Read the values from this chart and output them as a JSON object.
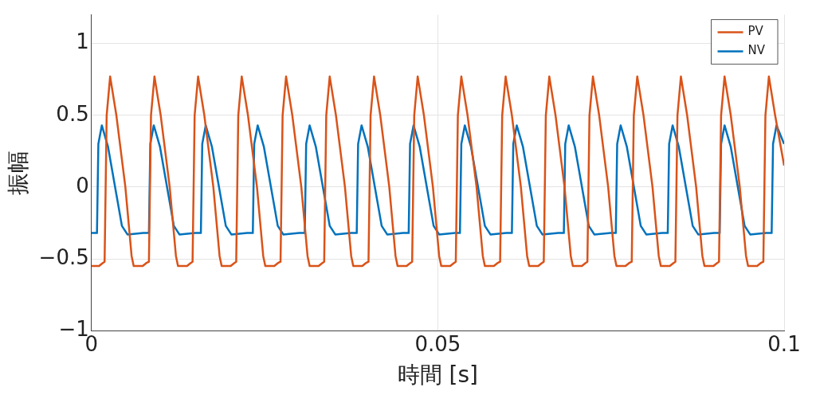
{
  "chart_data": {
    "type": "line",
    "xlabel": "時間 [s]",
    "ylabel": "振幅",
    "xlim": [
      0,
      0.1
    ],
    "xticks": [
      0,
      0.05,
      0.1
    ],
    "ylim": [
      -1,
      1.2
    ],
    "yticks": [
      -1,
      -0.5,
      0,
      0.5,
      1
    ],
    "grid": true,
    "legend": "top right",
    "marker": "none",
    "line_style": "solid",
    "series": [
      {
        "name": "PV",
        "color": "#d95319",
        "x": [
          0,
          0.0011,
          0.0016,
          0.0019,
          0.0022,
          0.0027,
          0.0036,
          0.0049,
          0.0058,
          0.0061,
          0.0074,
          0.0079,
          0.0083,
          0.0086,
          0.0091,
          0.01,
          0.0113,
          0.0122,
          0.0125,
          0.0138,
          0.0143,
          0.0146,
          0.0149,
          0.0154,
          0.0163,
          0.0176,
          0.0185,
          0.0188,
          0.0201,
          0.0206,
          0.0209,
          0.0212,
          0.0217,
          0.0226,
          0.0239,
          0.0248,
          0.0251,
          0.0264,
          0.0269,
          0.0273,
          0.0276,
          0.0281,
          0.029,
          0.0303,
          0.0312,
          0.0315,
          0.0328,
          0.0333,
          0.0336,
          0.0339,
          0.0344,
          0.0353,
          0.0366,
          0.0375,
          0.0378,
          0.0391,
          0.0396,
          0.04,
          0.0403,
          0.0408,
          0.0417,
          0.043,
          0.0439,
          0.0442,
          0.0455,
          0.046,
          0.0463,
          0.0466,
          0.0471,
          0.048,
          0.0493,
          0.0502,
          0.0505,
          0.0518,
          0.0523,
          0.0526,
          0.0529,
          0.0534,
          0.0543,
          0.0556,
          0.0565,
          0.0568,
          0.0581,
          0.0586,
          0.059,
          0.0593,
          0.0598,
          0.0607,
          0.062,
          0.0629,
          0.0632,
          0.0645,
          0.065,
          0.0653,
          0.0656,
          0.0661,
          0.067,
          0.0683,
          0.0692,
          0.0695,
          0.0708,
          0.0713,
          0.0716,
          0.0719,
          0.0724,
          0.0733,
          0.0746,
          0.0755,
          0.0758,
          0.0771,
          0.0776,
          0.078,
          0.0783,
          0.0788,
          0.0797,
          0.081,
          0.0819,
          0.0822,
          0.0835,
          0.084,
          0.0843,
          0.0846,
          0.0851,
          0.086,
          0.0873,
          0.0882,
          0.0885,
          0.0898,
          0.0903,
          0.0906,
          0.0909,
          0.0914,
          0.0923,
          0.0936,
          0.0945,
          0.0948,
          0.0961,
          0.0966,
          0.097,
          0.0973,
          0.0978,
          0.0987,
          0.1
        ],
        "values": [
          -0.55,
          -0.55,
          -0.53,
          -0.52,
          0.5,
          0.77,
          0.5,
          0,
          -0.48,
          -0.55,
          -0.55,
          -0.53,
          -0.52,
          0.5,
          0.77,
          0.5,
          0,
          -0.48,
          -0.55,
          -0.55,
          -0.53,
          -0.52,
          0.5,
          0.77,
          0.5,
          0,
          -0.48,
          -0.55,
          -0.55,
          -0.53,
          -0.52,
          0.5,
          0.77,
          0.5,
          0,
          -0.48,
          -0.55,
          -0.55,
          -0.53,
          -0.52,
          0.5,
          0.77,
          0.5,
          0,
          -0.48,
          -0.55,
          -0.55,
          -0.53,
          -0.52,
          0.5,
          0.77,
          0.5,
          0,
          -0.48,
          -0.55,
          -0.55,
          -0.53,
          -0.52,
          0.5,
          0.77,
          0.5,
          0,
          -0.48,
          -0.55,
          -0.55,
          -0.53,
          -0.52,
          0.5,
          0.77,
          0.5,
          0,
          -0.48,
          -0.55,
          -0.55,
          -0.53,
          -0.52,
          0.5,
          0.77,
          0.5,
          0,
          -0.48,
          -0.55,
          -0.55,
          -0.53,
          -0.52,
          0.5,
          0.77,
          0.5,
          0,
          -0.48,
          -0.55,
          -0.55,
          -0.53,
          -0.52,
          0.5,
          0.77,
          0.5,
          0,
          -0.48,
          -0.55,
          -0.55,
          -0.53,
          -0.52,
          0.5,
          0.77,
          0.5,
          0,
          -0.48,
          -0.55,
          -0.55,
          -0.53,
          -0.52,
          0.5,
          0.77,
          0.5,
          0,
          -0.48,
          -0.55,
          -0.55,
          -0.53,
          -0.52,
          0.5,
          0.77,
          0.5,
          0,
          -0.48,
          -0.55,
          -0.55,
          -0.53,
          -0.52,
          0.5,
          0.77,
          0.5,
          0,
          -0.48,
          -0.55,
          -0.55,
          -0.53,
          -0.52,
          0.5,
          0.77,
          0.5,
          0.15
        ]
      },
      {
        "name": "NV",
        "color": "#0072bd",
        "x": [
          0,
          0.0008,
          0.001,
          0.0015,
          0.0024,
          0.0036,
          0.0044,
          0.0052,
          0.0075,
          0.0083,
          0.0085,
          0.009,
          0.0099,
          0.0111,
          0.0119,
          0.0127,
          0.015,
          0.0158,
          0.016,
          0.0165,
          0.0174,
          0.0186,
          0.0194,
          0.0202,
          0.0225,
          0.0233,
          0.0235,
          0.024,
          0.0249,
          0.0261,
          0.0269,
          0.0277,
          0.03,
          0.0308,
          0.031,
          0.0315,
          0.0324,
          0.0336,
          0.0344,
          0.0352,
          0.0375,
          0.0383,
          0.0385,
          0.039,
          0.0399,
          0.0411,
          0.0419,
          0.0427,
          0.045,
          0.0458,
          0.046,
          0.0465,
          0.0474,
          0.0486,
          0.0494,
          0.0502,
          0.0525,
          0.0532,
          0.0534,
          0.0539,
          0.0548,
          0.056,
          0.0568,
          0.0576,
          0.0599,
          0.0607,
          0.0609,
          0.0614,
          0.0623,
          0.0635,
          0.0643,
          0.0651,
          0.0674,
          0.0682,
          0.0684,
          0.0689,
          0.0698,
          0.071,
          0.0718,
          0.0726,
          0.0749,
          0.0757,
          0.0759,
          0.0764,
          0.0773,
          0.0785,
          0.0793,
          0.0801,
          0.0824,
          0.0832,
          0.0834,
          0.0839,
          0.0848,
          0.086,
          0.0868,
          0.0876,
          0.0899,
          0.0907,
          0.0909,
          0.0914,
          0.0923,
          0.0935,
          0.0943,
          0.0951,
          0.0974,
          0.0982,
          0.0984,
          0.0989,
          0.1
        ],
        "values": [
          -0.32,
          -0.32,
          0.3,
          0.43,
          0.28,
          -0.05,
          -0.27,
          -0.33,
          -0.32,
          -0.32,
          0.3,
          0.43,
          0.28,
          -0.05,
          -0.27,
          -0.33,
          -0.32,
          -0.32,
          0.3,
          0.43,
          0.28,
          -0.05,
          -0.27,
          -0.33,
          -0.32,
          -0.32,
          0.3,
          0.43,
          0.28,
          -0.05,
          -0.27,
          -0.33,
          -0.32,
          -0.32,
          0.3,
          0.43,
          0.28,
          -0.05,
          -0.27,
          -0.33,
          -0.32,
          -0.32,
          0.3,
          0.43,
          0.28,
          -0.05,
          -0.27,
          -0.33,
          -0.32,
          -0.32,
          0.3,
          0.43,
          0.28,
          -0.05,
          -0.27,
          -0.33,
          -0.32,
          -0.32,
          0.3,
          0.43,
          0.28,
          -0.05,
          -0.27,
          -0.33,
          -0.32,
          -0.32,
          0.3,
          0.43,
          0.28,
          -0.05,
          -0.27,
          -0.33,
          -0.32,
          -0.32,
          0.3,
          0.43,
          0.28,
          -0.05,
          -0.27,
          -0.33,
          -0.32,
          -0.32,
          0.3,
          0.43,
          0.28,
          -0.05,
          -0.27,
          -0.33,
          -0.32,
          -0.32,
          0.3,
          0.43,
          0.28,
          -0.05,
          -0.27,
          -0.33,
          -0.32,
          -0.32,
          0.3,
          0.43,
          0.28,
          -0.05,
          -0.27,
          -0.33,
          -0.32,
          -0.32,
          0.3,
          0.43,
          0.3
        ]
      }
    ]
  }
}
